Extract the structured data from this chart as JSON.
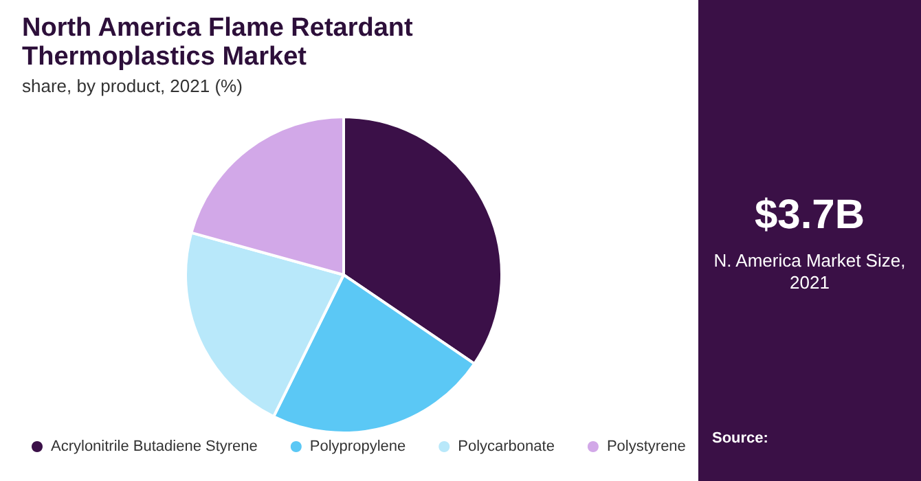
{
  "chart_data": {
    "type": "pie",
    "title": "North America Flame Retardant Thermoplastics Market",
    "subtitle": "share, by product, 2021 (%)",
    "categories": [
      "Acrylonitrile Butadiene Styrene",
      "Polypropylene",
      "Polycarbonate",
      "Polystyrene"
    ],
    "values": [
      34.5,
      22.8,
      22.0,
      20.7
    ],
    "colors": [
      "#3b1048",
      "#5bc8f5",
      "#b8e8fa",
      "#d2a8e8"
    ],
    "legend": "bottom",
    "annotations": [
      "$3.7B",
      "N. America Market Size, 2021",
      "Source:"
    ]
  }
}
